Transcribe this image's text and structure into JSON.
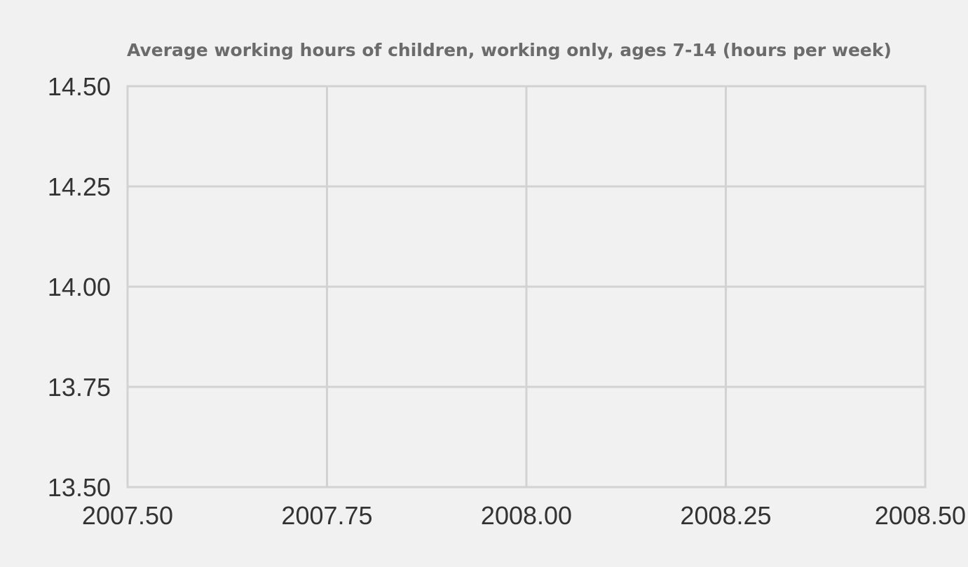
{
  "chart_data": {
    "type": "line",
    "title": "Average working hours of children, working only, ages 7-14 (hours per week)",
    "xlabel": "",
    "ylabel": "",
    "xlim": [
      2007.5,
      2008.5
    ],
    "ylim": [
      13.5,
      14.5
    ],
    "x_ticks": [
      "2007.50",
      "2007.75",
      "2008.00",
      "2008.25",
      "2008.50"
    ],
    "y_ticks": [
      "14.50",
      "14.25",
      "14.00",
      "13.75",
      "13.50"
    ],
    "grid": true,
    "legend": "none",
    "series": []
  }
}
